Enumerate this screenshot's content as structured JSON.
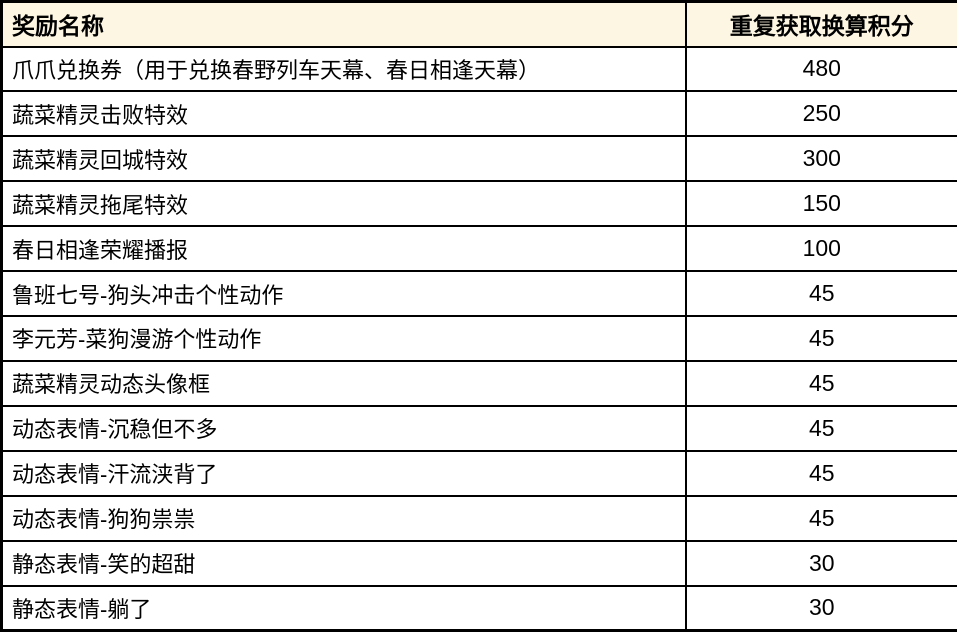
{
  "table": {
    "title": "reward-points-conversion-table",
    "colors": {
      "header_bg": "#fdf6e2",
      "border": "#000000",
      "row_bg": "#ffffff",
      "text": "#000000"
    },
    "headers": [
      {
        "label": "奖励名称"
      },
      {
        "label": "重复获取换算积分"
      }
    ],
    "rows": [
      {
        "name": "爪爪兑换券（用于兑换春野列车天幕、春日相逢天幕）",
        "points": "480"
      },
      {
        "name": "蔬菜精灵击败特效",
        "points": "250"
      },
      {
        "name": "蔬菜精灵回城特效",
        "points": "300"
      },
      {
        "name": "蔬菜精灵拖尾特效",
        "points": "150"
      },
      {
        "name": "春日相逢荣耀播报",
        "points": "100"
      },
      {
        "name": "鲁班七号-狗头冲击个性动作",
        "points": "45"
      },
      {
        "name": "李元芳-菜狗漫游个性动作",
        "points": "45"
      },
      {
        "name": "蔬菜精灵动态头像框",
        "points": "45"
      },
      {
        "name": "动态表情-沉稳但不多",
        "points": "45"
      },
      {
        "name": "动态表情-汗流浃背了",
        "points": "45"
      },
      {
        "name": "动态表情-狗狗祟祟",
        "points": "45"
      },
      {
        "name": "静态表情-笑的超甜",
        "points": "30"
      },
      {
        "name": "静态表情-躺了",
        "points": "30"
      }
    ]
  }
}
